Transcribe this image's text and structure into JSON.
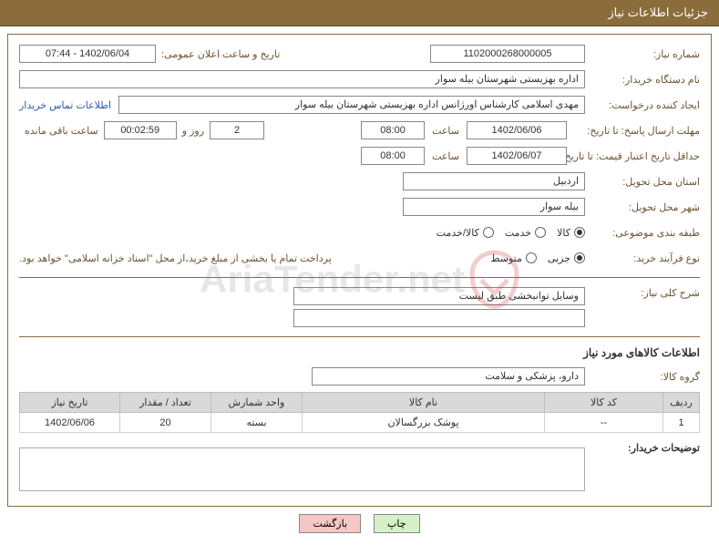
{
  "header": {
    "title": "جزئیات اطلاعات نیاز"
  },
  "labels": {
    "need_no": "شماره نیاز:",
    "announce_dt": "تاریخ و ساعت اعلان عمومی:",
    "buyer_org": "نام دستگاه خریدار:",
    "requester": "ایجاد کننده درخواست:",
    "contact_link": "اطلاعات تماس خریدار",
    "reply_deadline": "مهلت ارسال پاسخ: تا تاریخ:",
    "time_lbl": "ساعت",
    "days_and": "روز و",
    "time_remaining": "ساعت باقی مانده",
    "price_validity": "حداقل تاریخ اعتبار قیمت: تا تاریخ:",
    "delivery_province": "استان محل تحویل:",
    "delivery_city": "شهر محل تحویل:",
    "category": "طبقه بندی موضوعی:",
    "purchase_type": "نوع فرآیند خرید:",
    "payment_note": "پرداخت تمام یا بخشی از مبلغ خرید،از محل \"اسناد خزانه اسلامی\" خواهد بود.",
    "main_desc": "شرح کلی نیاز:",
    "goods_info": "اطلاعات کالاهای مورد نیاز",
    "goods_group": "گروه کالا:",
    "buyer_notes": "توضیحات خریدار:"
  },
  "values": {
    "need_no": "1102000268000005",
    "announce_dt": "1402/06/04 - 07:44",
    "buyer_org": "اداره بهزیستی شهرستان بیله سوار",
    "requester": "مهدی اسلامی کارشناس اورژانس اداره بهزیستی شهرستان بیله سوار",
    "reply_date": "1402/06/06",
    "reply_time": "08:00",
    "remaining_days": "2",
    "remaining_time": "00:02:59",
    "validity_date": "1402/06/07",
    "validity_time": "08:00",
    "province": "اردبیل",
    "city": "بیله سوار",
    "main_desc": "وسایل توانبخشی طبق لیست",
    "goods_group": "دارو، پزشکی و سلامت"
  },
  "radios": {
    "category": [
      {
        "label": "کالا",
        "checked": true
      },
      {
        "label": "خدمت",
        "checked": false
      },
      {
        "label": "کالا/خدمت",
        "checked": false
      }
    ],
    "purchase": [
      {
        "label": "جزیی",
        "checked": true
      },
      {
        "label": "متوسط",
        "checked": false
      }
    ]
  },
  "table": {
    "columns": [
      "ردیف",
      "کد کالا",
      "نام کالا",
      "واحد شمارش",
      "تعداد / مقدار",
      "تاریخ نیاز"
    ],
    "col_widths": [
      "40px",
      "130px",
      "auto",
      "100px",
      "100px",
      "110px"
    ],
    "rows": [
      [
        "1",
        "--",
        "پوشک بزرگسالان",
        "بسته",
        "20",
        "1402/06/06"
      ]
    ]
  },
  "buttons": {
    "print": "چاپ",
    "back": "بازگشت"
  },
  "watermark": "AriaTender.net",
  "colors": {
    "header_bg": "#8a6d3b",
    "border": "#8a6d3b",
    "label": "#6b5532",
    "link": "#2a5db0",
    "th_bg": "#d9d9d9"
  }
}
